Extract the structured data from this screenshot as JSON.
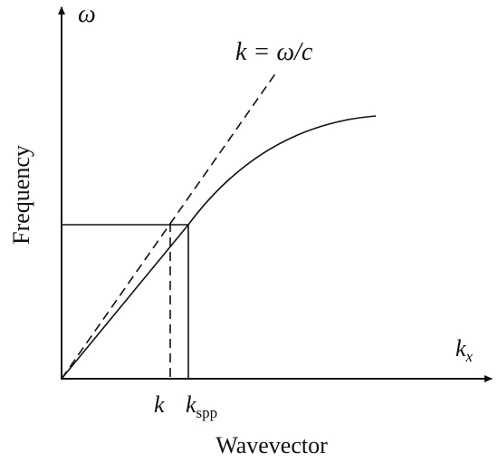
{
  "labels": {
    "y_axis_symbol": "ω",
    "light_line": "k = ω/c",
    "y_axis_title": "Frequency",
    "x_axis_title": "Wavevector",
    "x_axis_symbol": {
      "main": "k",
      "sub": "x"
    },
    "k_marker": "k",
    "kspp_marker": {
      "main": "k",
      "sub": "spp"
    }
  }
}
